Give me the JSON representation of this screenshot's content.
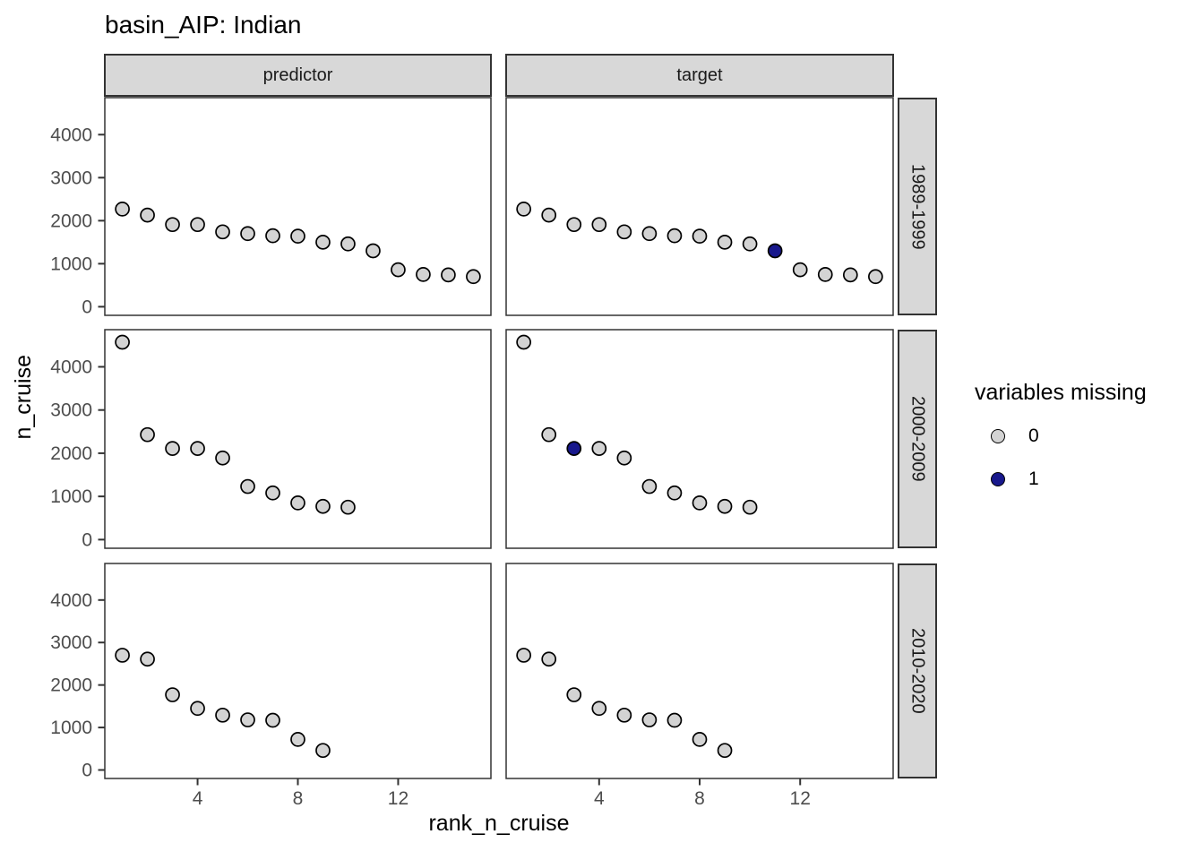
{
  "title": "basin_AIP: Indian",
  "axes": {
    "x_label": "rank_n_cruise",
    "y_label": "n_cruise",
    "x_ticks": [
      4,
      8,
      12
    ],
    "y_ticks": [
      0,
      1000,
      2000,
      3000,
      4000
    ]
  },
  "legend": {
    "title": "variables missing",
    "items": [
      {
        "label": "0",
        "color": "#d3d3d3"
      },
      {
        "label": "1",
        "color": "#18188c"
      }
    ]
  },
  "chart_data": {
    "type": "scatter",
    "facet_col_labels": [
      "predictor",
      "target"
    ],
    "facet_row_labels": [
      "1989-1999",
      "2000-2009",
      "2010-2020"
    ],
    "x_var": "rank_n_cruise",
    "y_var": "n_cruise",
    "xlim": [
      0.3,
      15.7
    ],
    "ylim": [
      -200,
      4860
    ],
    "grid": false,
    "legend_position": "right",
    "rows": [
      {
        "period": "1989-1999",
        "ranks": [
          1,
          2,
          3,
          4,
          5,
          6,
          7,
          8,
          9,
          10,
          11,
          12,
          13,
          14,
          15
        ],
        "values": [
          2270,
          2130,
          1910,
          1910,
          1740,
          1700,
          1650,
          1640,
          1500,
          1460,
          1300,
          860,
          750,
          740,
          700
        ],
        "target_missing_ranks": [
          11
        ]
      },
      {
        "period": "2000-2009",
        "ranks": [
          1,
          2,
          3,
          4,
          5,
          6,
          7,
          8,
          9,
          10
        ],
        "values": [
          4570,
          2430,
          2110,
          2110,
          1890,
          1230,
          1080,
          850,
          770,
          750
        ],
        "target_missing_ranks": [
          3
        ]
      },
      {
        "period": "2010-2020",
        "ranks": [
          1,
          2,
          3,
          4,
          5,
          6,
          7,
          8,
          9
        ],
        "values": [
          2700,
          2610,
          1770,
          1450,
          1290,
          1180,
          1170,
          720,
          460
        ],
        "target_missing_ranks": []
      }
    ]
  },
  "colors": {
    "point_fill_present": "#d3d3d3",
    "point_fill_missing": "#18188c",
    "point_stroke": "#000000",
    "panel_border": "#333333",
    "strip_fill": "#d8d8d8",
    "tick_mark": "#333333",
    "tick_label": "#4d4d4d"
  }
}
